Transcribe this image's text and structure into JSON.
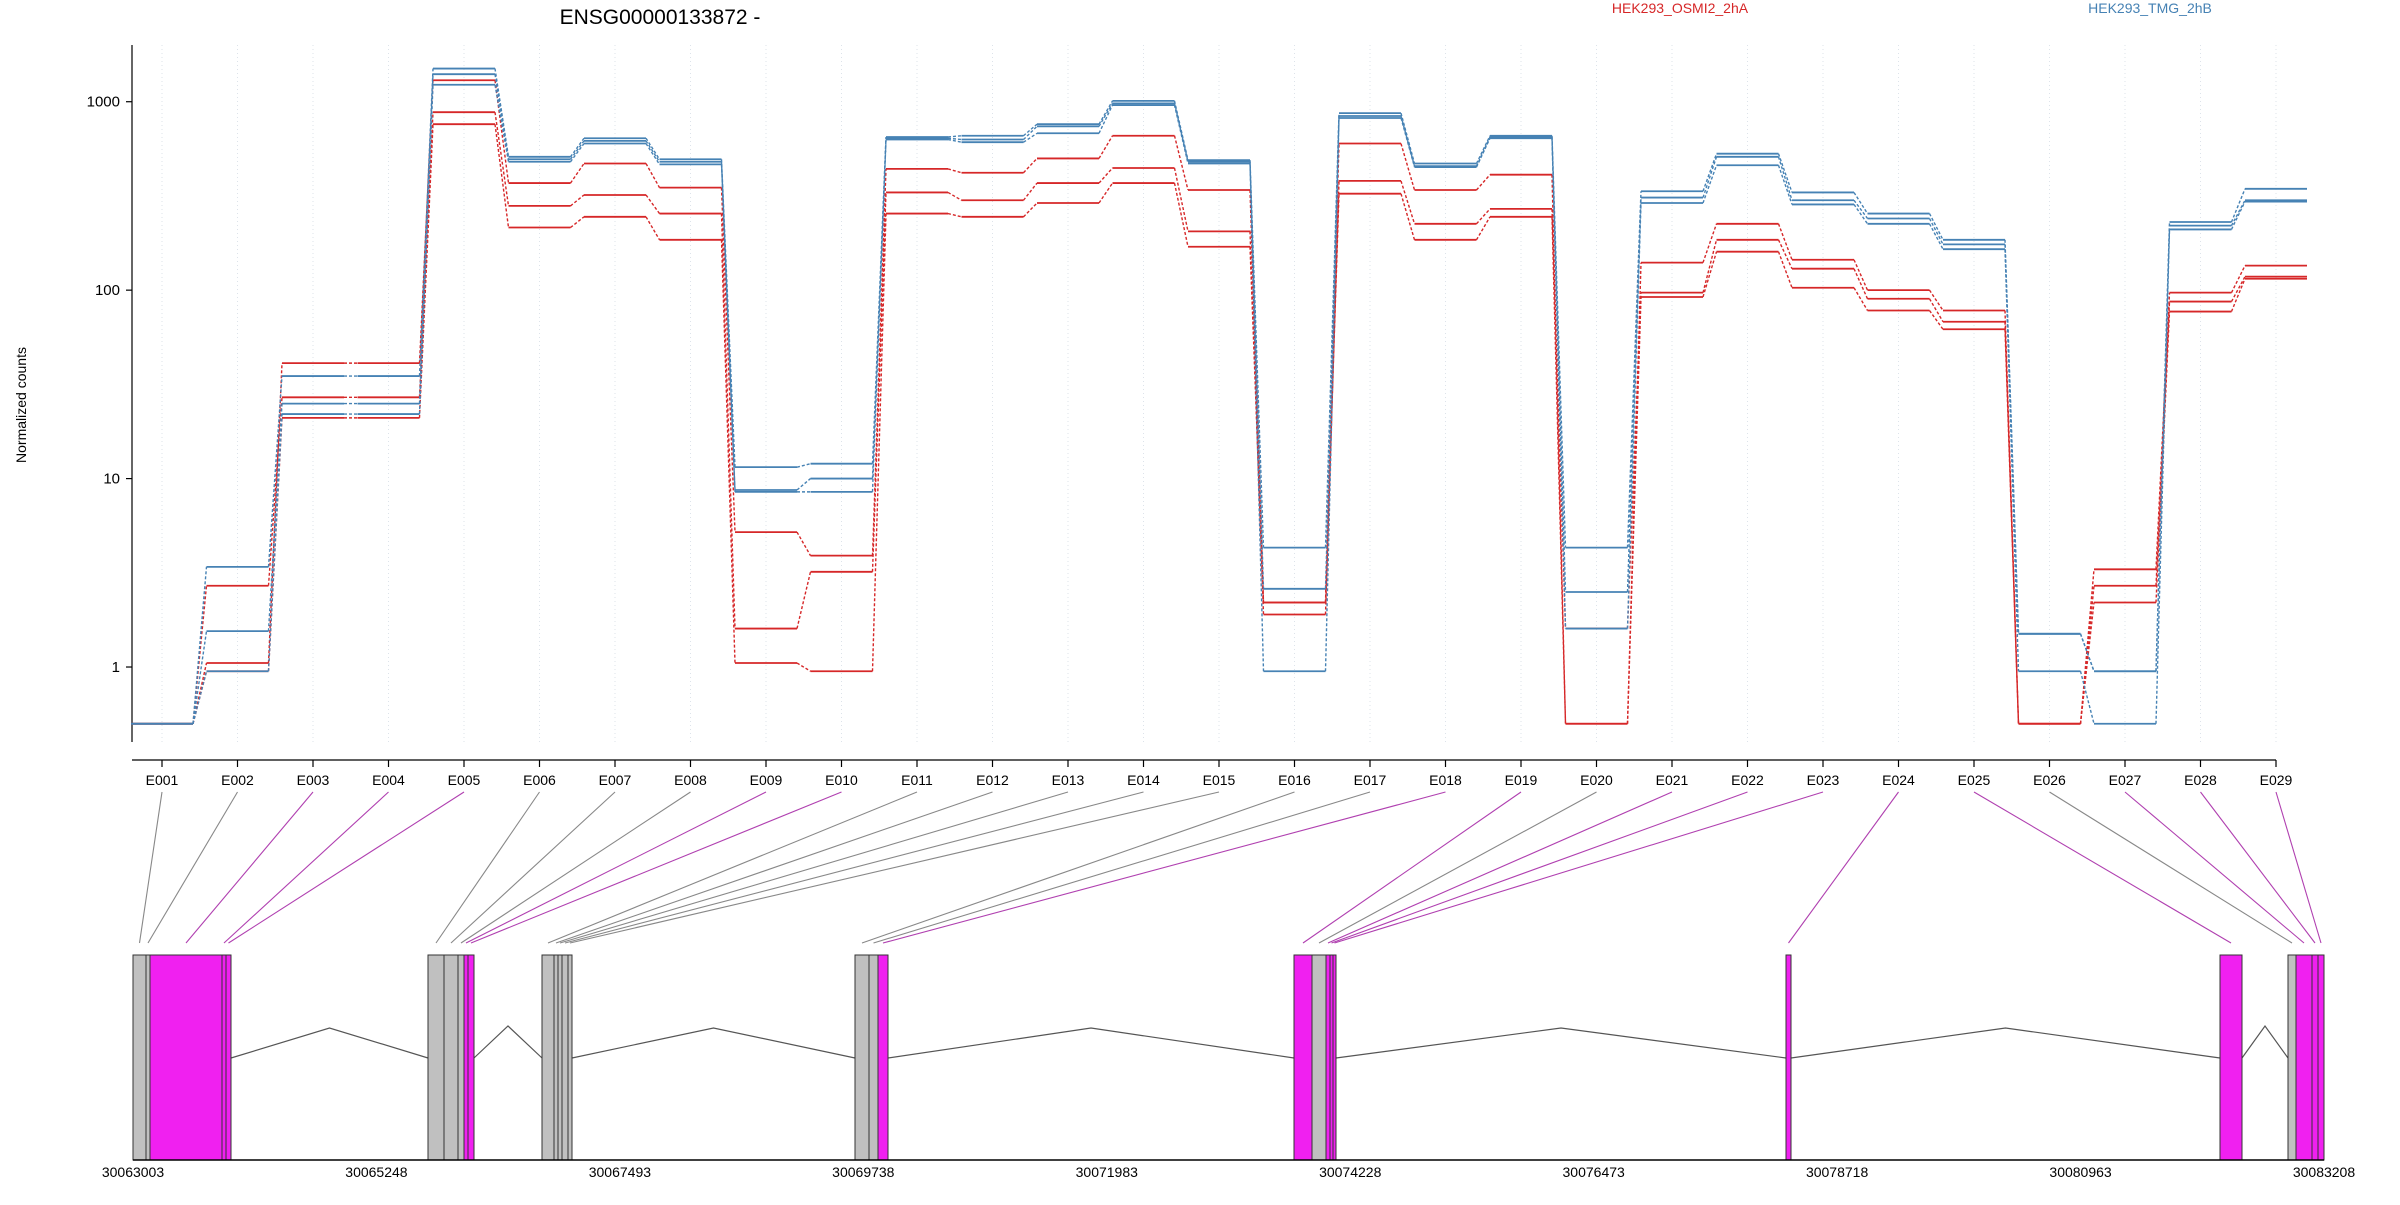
{
  "chart_data": {
    "type": "line",
    "title": "ENSG00000133872 -",
    "ylabel": "Normalized counts",
    "yscale": "log",
    "ylim": [
      0.4,
      2000
    ],
    "yticks": [
      1,
      10,
      100,
      1000
    ],
    "ytick_labels": [
      "1",
      "10",
      "100",
      "1000"
    ],
    "categories": [
      "E001",
      "E002",
      "E003",
      "E004",
      "E005",
      "E006",
      "E007",
      "E008",
      "E009",
      "E010",
      "E011",
      "E012",
      "E013",
      "E014",
      "E015",
      "E016",
      "E017",
      "E018",
      "E019",
      "E020",
      "E021",
      "E022",
      "E023",
      "E024",
      "E025",
      "E026",
      "E027",
      "E028",
      "E029"
    ],
    "legend": [
      {
        "name": "HEK293_OSMI2_2hA",
        "color": "#d62728"
      },
      {
        "name": "HEK293_TMG_2hB",
        "color": "#4682b4"
      }
    ],
    "series": [
      {
        "name": "HEK293_OSMI2_2hA",
        "color": "#d62728",
        "values": [
          0.5,
          1.05,
          41,
          41,
          1300,
          370,
          470,
          350,
          5.2,
          3.9,
          440,
          420,
          500,
          660,
          340,
          2.2,
          600,
          340,
          410,
          0.5,
          140,
          225,
          145,
          100,
          78,
          0.5,
          3.3,
          97,
          135
        ]
      },
      {
        "name": "HEK293_OSMI2_2hA",
        "color": "#d62728",
        "values": [
          0.5,
          2.7,
          27,
          27,
          880,
          280,
          320,
          255,
          1.6,
          3.2,
          330,
          300,
          370,
          445,
          205,
          1.9,
          380,
          225,
          270,
          1.6,
          97,
          185,
          130,
          90,
          68,
          0.5,
          2.7,
          87,
          118
        ]
      },
      {
        "name": "HEK293_OSMI2_2hA",
        "color": "#d62728",
        "values": [
          0.5,
          0.95,
          21,
          21,
          760,
          215,
          245,
          185,
          1.05,
          0.95,
          255,
          245,
          290,
          370,
          170,
          2.2,
          325,
          185,
          245,
          0.5,
          92,
          160,
          103,
          78,
          62,
          0.5,
          2.2,
          77,
          115
        ]
      },
      {
        "name": "HEK293_TMG_2hB",
        "color": "#4682b4",
        "values": [
          0.5,
          3.4,
          35,
          35,
          1500,
          510,
          640,
          495,
          11.5,
          12,
          650,
          660,
          760,
          1010,
          490,
          4.3,
          870,
          470,
          660,
          4.3,
          335,
          530,
          330,
          255,
          185,
          1.5,
          0.95,
          230,
          345
        ]
      },
      {
        "name": "HEK293_TMG_2hB",
        "color": "#4682b4",
        "values": [
          0.5,
          1.55,
          25,
          25,
          1400,
          495,
          620,
          480,
          8.7,
          10,
          640,
          630,
          740,
          980,
          480,
          2.6,
          840,
          455,
          650,
          2.5,
          310,
          510,
          300,
          240,
          175,
          1.5,
          0.95,
          220,
          300
        ]
      },
      {
        "name": "HEK293_TMG_2hB",
        "color": "#4682b4",
        "values": [
          0.5,
          0.95,
          22,
          22,
          1230,
          480,
          600,
          465,
          8.5,
          8.5,
          630,
          610,
          680,
          960,
          470,
          0.95,
          820,
          450,
          640,
          1.6,
          290,
          460,
          285,
          225,
          165,
          0.95,
          0.5,
          210,
          295
        ]
      }
    ],
    "gene_model": {
      "coordinate_ticks": [
        "30063003",
        "30065248",
        "30067493",
        "30069738",
        "30071983",
        "30074228",
        "30076473",
        "30078718",
        "30080963",
        "30083208"
      ],
      "exons": [
        {
          "id": "E001",
          "color": "#c0c0c0"
        },
        {
          "id": "E002",
          "color": "#c0c0c0"
        },
        {
          "id": "E003",
          "color": "#f020f0"
        },
        {
          "id": "E004",
          "color": "#f020f0"
        },
        {
          "id": "E005",
          "color": "#f020f0"
        },
        {
          "id": "E006",
          "color": "#c0c0c0"
        },
        {
          "id": "E007",
          "color": "#c0c0c0"
        },
        {
          "id": "E008",
          "color": "#c0c0c0"
        },
        {
          "id": "E009",
          "color": "#f020f0"
        },
        {
          "id": "E010",
          "color": "#f020f0"
        },
        {
          "id": "E011",
          "color": "#c0c0c0"
        },
        {
          "id": "E012",
          "color": "#c0c0c0"
        },
        {
          "id": "E013",
          "color": "#c0c0c0"
        },
        {
          "id": "E014",
          "color": "#c0c0c0"
        },
        {
          "id": "E015",
          "color": "#c0c0c0"
        },
        {
          "id": "E016",
          "color": "#c0c0c0"
        },
        {
          "id": "E017",
          "color": "#c0c0c0"
        },
        {
          "id": "E018",
          "color": "#f020f0"
        },
        {
          "id": "E019",
          "color": "#f020f0"
        },
        {
          "id": "E020",
          "color": "#c0c0c0"
        },
        {
          "id": "E021",
          "color": "#f020f0"
        },
        {
          "id": "E022",
          "color": "#f020f0"
        },
        {
          "id": "E023",
          "color": "#f020f0"
        },
        {
          "id": "E024",
          "color": "#f020f0"
        },
        {
          "id": "E025",
          "color": "#f020f0"
        },
        {
          "id": "E026",
          "color": "#c0c0c0"
        },
        {
          "id": "E027",
          "color": "#f020f0"
        },
        {
          "id": "E028",
          "color": "#f020f0"
        },
        {
          "id": "E029",
          "color": "#f020f0"
        }
      ]
    }
  }
}
